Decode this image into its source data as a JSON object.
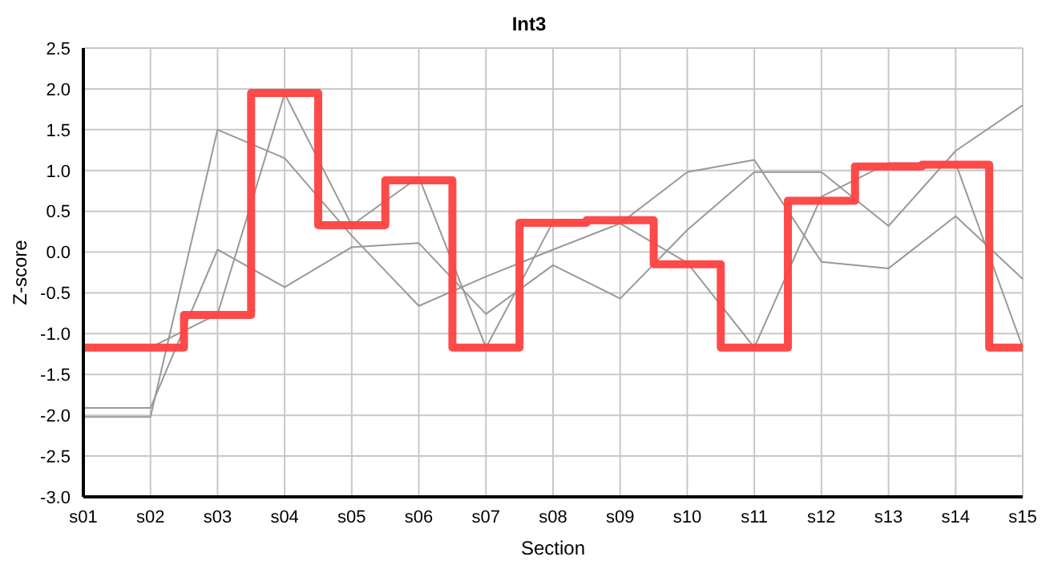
{
  "chart_data": {
    "type": "line",
    "title": "Int3",
    "xlabel": "Section",
    "ylabel": "Z-score",
    "categories": [
      "s01",
      "s02",
      "s03",
      "s04",
      "s05",
      "s06",
      "s07",
      "s08",
      "s09",
      "s10",
      "s11",
      "s12",
      "s13",
      "s14",
      "s15"
    ],
    "series": [
      {
        "color": "#999999",
        "values": [
          null,
          -1.17,
          -0.76,
          1.94,
          0.33,
          0.92,
          -1.17,
          0.37,
          0.35,
          -0.13,
          -1.17,
          0.68,
          1.09,
          1.09,
          -1.17
        ]
      },
      {
        "color": "#999999",
        "values": [
          -2.02,
          -2.02,
          1.5,
          1.15,
          0.2,
          -0.66,
          -0.3,
          0.03,
          0.35,
          0.98,
          1.13,
          -0.12,
          -0.2,
          0.44,
          -0.33
        ]
      },
      {
        "color": "#999999",
        "values": [
          -1.91,
          -1.91,
          0.03,
          -0.43,
          0.06,
          0.11,
          -0.76,
          -0.16,
          -0.57,
          0.27,
          0.98,
          0.98,
          0.32,
          1.24,
          1.8
        ]
      },
      {
        "type": "step",
        "color": "#ff4040",
        "values": [
          -1.17,
          -1.17,
          -0.77,
          1.95,
          0.33,
          0.88,
          -1.17,
          0.36,
          0.39,
          -0.15,
          -1.17,
          0.63,
          1.05,
          1.07,
          -1.17
        ]
      }
    ],
    "ylim": [
      -3,
      2.5
    ],
    "yticks": [
      {
        "value": -3,
        "label": "-3.0"
      },
      {
        "value": -2.5,
        "label": "-2.5"
      },
      {
        "value": -2,
        "label": "-2.0"
      },
      {
        "value": -1.5,
        "label": "-1.5"
      },
      {
        "value": -1,
        "label": "-1.0"
      },
      {
        "value": -0.5,
        "label": "-0.5"
      },
      {
        "value": 0,
        "label": "0.0"
      },
      {
        "value": 0.5,
        "label": "0.5"
      },
      {
        "value": 1,
        "label": "1.0"
      },
      {
        "value": 1.5,
        "label": "1.5"
      },
      {
        "value": 2,
        "label": "2.0"
      },
      {
        "value": 2.5,
        "label": "2.5"
      }
    ],
    "grid": true,
    "legend": false,
    "marker": "none",
    "line_style": "solid"
  }
}
